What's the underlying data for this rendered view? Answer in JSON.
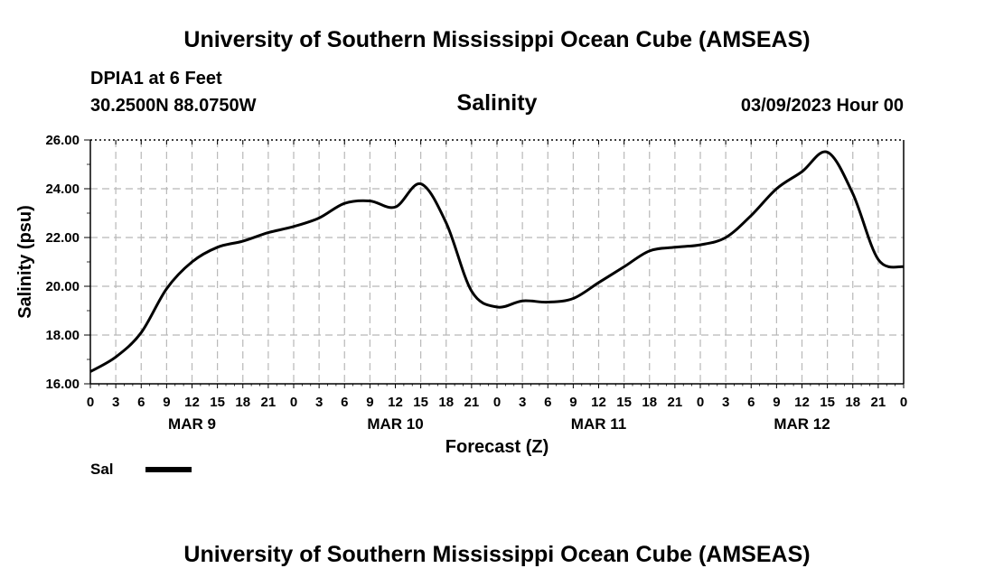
{
  "header": {
    "title": "University of Southern Mississippi Ocean Cube (AMSEAS)",
    "station": "DPIA1 at 6 Feet",
    "coords": "30.2500N  88.0750W",
    "plot_title": "Salinity",
    "datetime": "03/09/2023 Hour 00"
  },
  "footer": {
    "title": "University of Southern Mississippi Ocean Cube (AMSEAS)"
  },
  "legend": {
    "label": "Sal"
  },
  "chart_data": {
    "type": "line",
    "title": "Salinity",
    "xlabel": "Forecast (Z)",
    "ylabel": "Salinity (psu)",
    "xlim": [
      0,
      96
    ],
    "ylim": [
      16,
      26
    ],
    "grid": true,
    "legend_position": "bottom-left",
    "x_tick_labels": [
      "0",
      "3",
      "6",
      "9",
      "12",
      "15",
      "18",
      "21",
      "0",
      "3",
      "6",
      "9",
      "12",
      "15",
      "18",
      "21",
      "0",
      "3",
      "6",
      "9",
      "12",
      "15",
      "18",
      "21",
      "0",
      "3",
      "6",
      "9",
      "12",
      "15",
      "18",
      "21",
      "0"
    ],
    "y_tick_labels": [
      "16.00",
      "18.00",
      "20.00",
      "22.00",
      "24.00",
      "26.00"
    ],
    "y_ticks": [
      16,
      18,
      20,
      22,
      24,
      26
    ],
    "date_labels": [
      {
        "label": "MAR 9",
        "x": 12
      },
      {
        "label": "MAR 10",
        "x": 36
      },
      {
        "label": "MAR 11",
        "x": 60
      },
      {
        "label": "MAR 12",
        "x": 84
      }
    ],
    "series": [
      {
        "name": "Sal",
        "x": [
          0,
          3,
          6,
          9,
          12,
          15,
          18,
          21,
          24,
          27,
          30,
          33,
          36,
          39,
          42,
          45,
          48,
          51,
          54,
          57,
          60,
          63,
          66,
          69,
          72,
          75,
          78,
          81,
          84,
          87,
          90,
          93,
          96
        ],
        "values": [
          16.5,
          17.1,
          18.1,
          19.9,
          21.0,
          21.6,
          21.85,
          22.2,
          22.45,
          22.8,
          23.4,
          23.5,
          23.25,
          24.2,
          22.6,
          19.8,
          19.15,
          19.4,
          19.35,
          19.5,
          20.15,
          20.8,
          21.45,
          21.6,
          21.7,
          22.0,
          22.9,
          24.0,
          24.7,
          25.5,
          23.8,
          21.1,
          20.8
        ]
      }
    ]
  }
}
